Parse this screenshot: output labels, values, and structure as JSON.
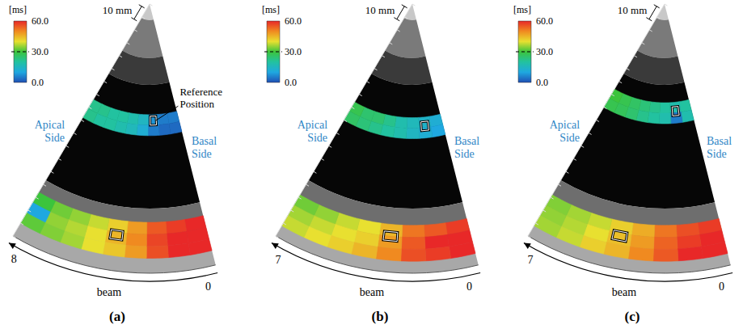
{
  "chart_data": [
    {
      "type": "heatmap",
      "title": "(a)",
      "xlabel": "beam",
      "xlim": [
        -0.5,
        8.5
      ],
      "xticks": [
        0,
        8
      ],
      "ylim": [
        0,
        180
      ],
      "colorbar": {
        "label": "[ms]",
        "range": [
          0,
          60
        ],
        "ticks": [
          {
            "value": 0,
            "label": "0.0"
          },
          {
            "value": 30,
            "label": "30.0"
          },
          {
            "value": 60,
            "label": "60.0"
          }
        ]
      },
      "scale_bar": {
        "label": "10 mm",
        "value": 10
      },
      "side_labels": {
        "left": "Apical Side",
        "right": "Basal Side"
      },
      "reference_label": "Reference Position",
      "reference_cells": [
        [
          2,
          78
        ],
        [
          4,
          156
        ]
      ],
      "rows": [
        {
          "depth": [
            74,
            81
          ],
          "values": [
            5,
            5,
            8,
            15,
            18,
            20,
            20,
            22,
            22
          ]
        },
        {
          "depth": [
            81,
            88
          ],
          "values": [
            3,
            3,
            5,
            12,
            16,
            18,
            20,
            20,
            22
          ]
        },
        {
          "depth": [
            146,
            154
          ],
          "values": [
            60,
            58,
            55,
            48,
            42,
            38,
            35,
            33,
            30
          ]
        },
        {
          "depth": [
            154,
            162
          ],
          "values": [
            60,
            60,
            57,
            50,
            45,
            40,
            37,
            35,
            10
          ]
        },
        {
          "depth": [
            162,
            170
          ],
          "values": [
            60,
            60,
            56,
            48,
            43,
            40,
            36,
            34,
            32
          ]
        }
      ]
    },
    {
      "type": "heatmap",
      "title": "(b)",
      "xlabel": "beam",
      "xlim": [
        -0.5,
        7.5
      ],
      "xticks": [
        0,
        7
      ],
      "ylim": [
        0,
        180
      ],
      "colorbar": {
        "label": "[ms]",
        "range": [
          0,
          60
        ],
        "ticks": [
          {
            "value": 0,
            "label": "0.0"
          },
          {
            "value": 30,
            "label": "30.0"
          },
          {
            "value": 60,
            "label": "60.0"
          }
        ]
      },
      "scale_bar": {
        "label": "10 mm",
        "value": 10
      },
      "side_labels": {
        "left": "Apical Side",
        "right": "Basal Side"
      },
      "reference_cells": [
        [
          1,
          82
        ],
        [
          3,
          156
        ]
      ],
      "rows": [
        {
          "depth": [
            76,
            83
          ],
          "values": [
            12,
            14,
            16,
            18,
            22,
            25,
            25,
            28
          ]
        },
        {
          "depth": [
            83,
            90
          ],
          "values": [
            10,
            12,
            15,
            18,
            20,
            22,
            24,
            26
          ]
        },
        {
          "depth": [
            148,
            156
          ],
          "values": [
            58,
            55,
            52,
            45,
            40,
            38,
            35,
            33
          ]
        },
        {
          "depth": [
            156,
            164
          ],
          "values": [
            60,
            60,
            55,
            48,
            42,
            40,
            38,
            36
          ]
        },
        {
          "depth": [
            164,
            172
          ],
          "values": [
            60,
            58,
            56,
            50,
            45,
            42,
            40,
            38
          ]
        }
      ]
    },
    {
      "type": "heatmap",
      "title": "(c)",
      "xlabel": "beam",
      "xlim": [
        -0.5,
        7.5
      ],
      "xticks": [
        0,
        7
      ],
      "ylim": [
        0,
        180
      ],
      "colorbar": {
        "label": "[ms]",
        "range": [
          0,
          60
        ],
        "ticks": [
          {
            "value": 0,
            "label": "0.0"
          },
          {
            "value": 30,
            "label": "30.0"
          },
          {
            "value": 60,
            "label": "60.0"
          }
        ]
      },
      "scale_bar": {
        "label": "10 mm",
        "value": 10
      },
      "side_labels": {
        "left": "Apical Side",
        "right": "Basal Side"
      },
      "reference_cells": [
        [
          1,
          72
        ],
        [
          4,
          158
        ]
      ],
      "rows": [
        {
          "depth": [
            66,
            73
          ],
          "values": [
            20,
            18,
            20,
            22,
            24,
            26,
            28,
            30
          ]
        },
        {
          "depth": [
            73,
            80
          ],
          "values": [
            18,
            5,
            18,
            20,
            22,
            25,
            27,
            28
          ]
        },
        {
          "depth": [
            148,
            156
          ],
          "values": [
            58,
            56,
            52,
            46,
            42,
            38,
            36,
            34
          ]
        },
        {
          "depth": [
            156,
            164
          ],
          "values": [
            60,
            58,
            54,
            48,
            44,
            40,
            37,
            35
          ]
        },
        {
          "depth": [
            164,
            172
          ],
          "values": [
            60,
            60,
            55,
            50,
            45,
            42,
            38,
            36
          ]
        }
      ]
    }
  ]
}
